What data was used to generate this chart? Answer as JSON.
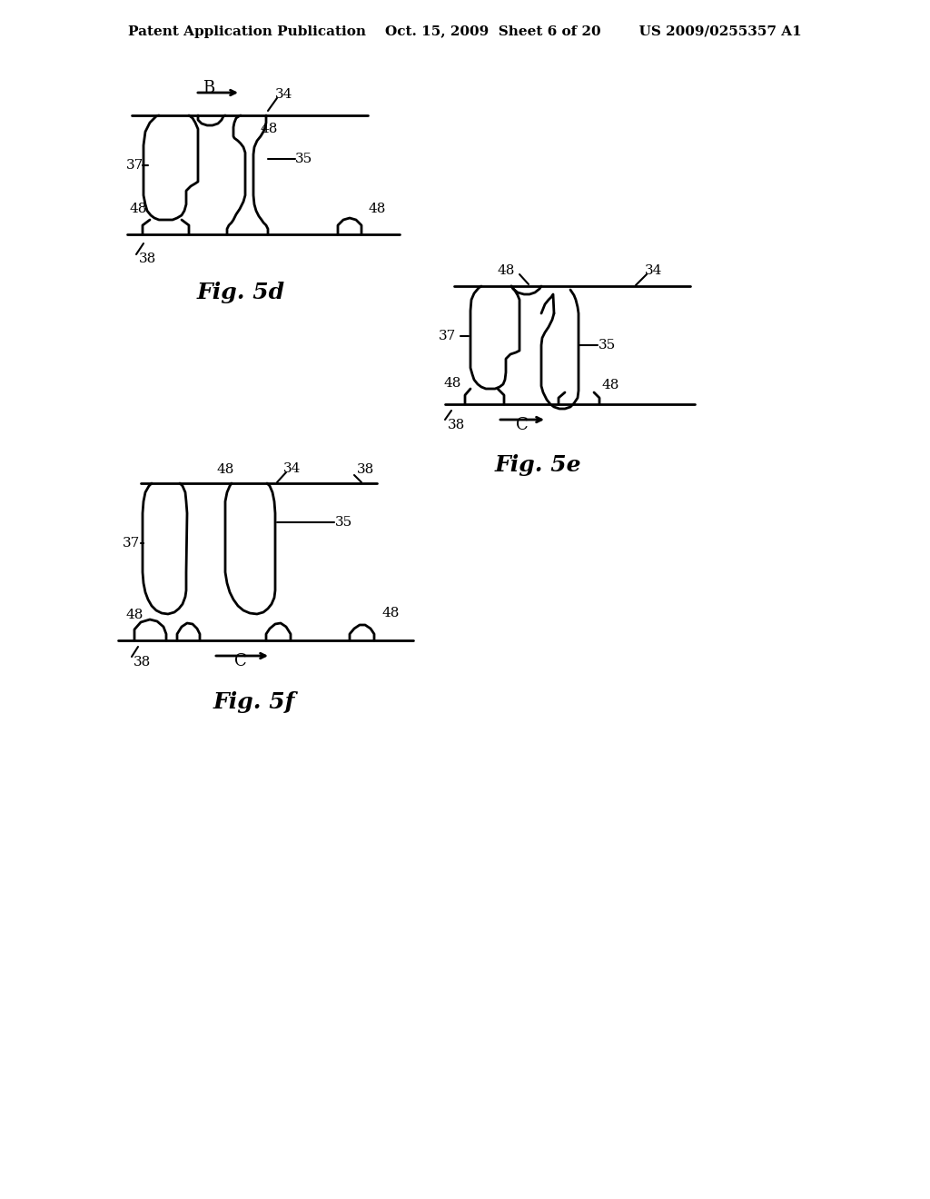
{
  "bg_color": "#ffffff",
  "header_text": "Patent Application Publication    Oct. 15, 2009  Sheet 6 of 20        US 2009/0255357 A1",
  "header_fontsize": 11,
  "fig5d_label": "Fig. 5d",
  "fig5e_label": "Fig. 5e",
  "fig5f_label": "Fig. 5f",
  "line_color": "#000000",
  "line_width": 1.5
}
